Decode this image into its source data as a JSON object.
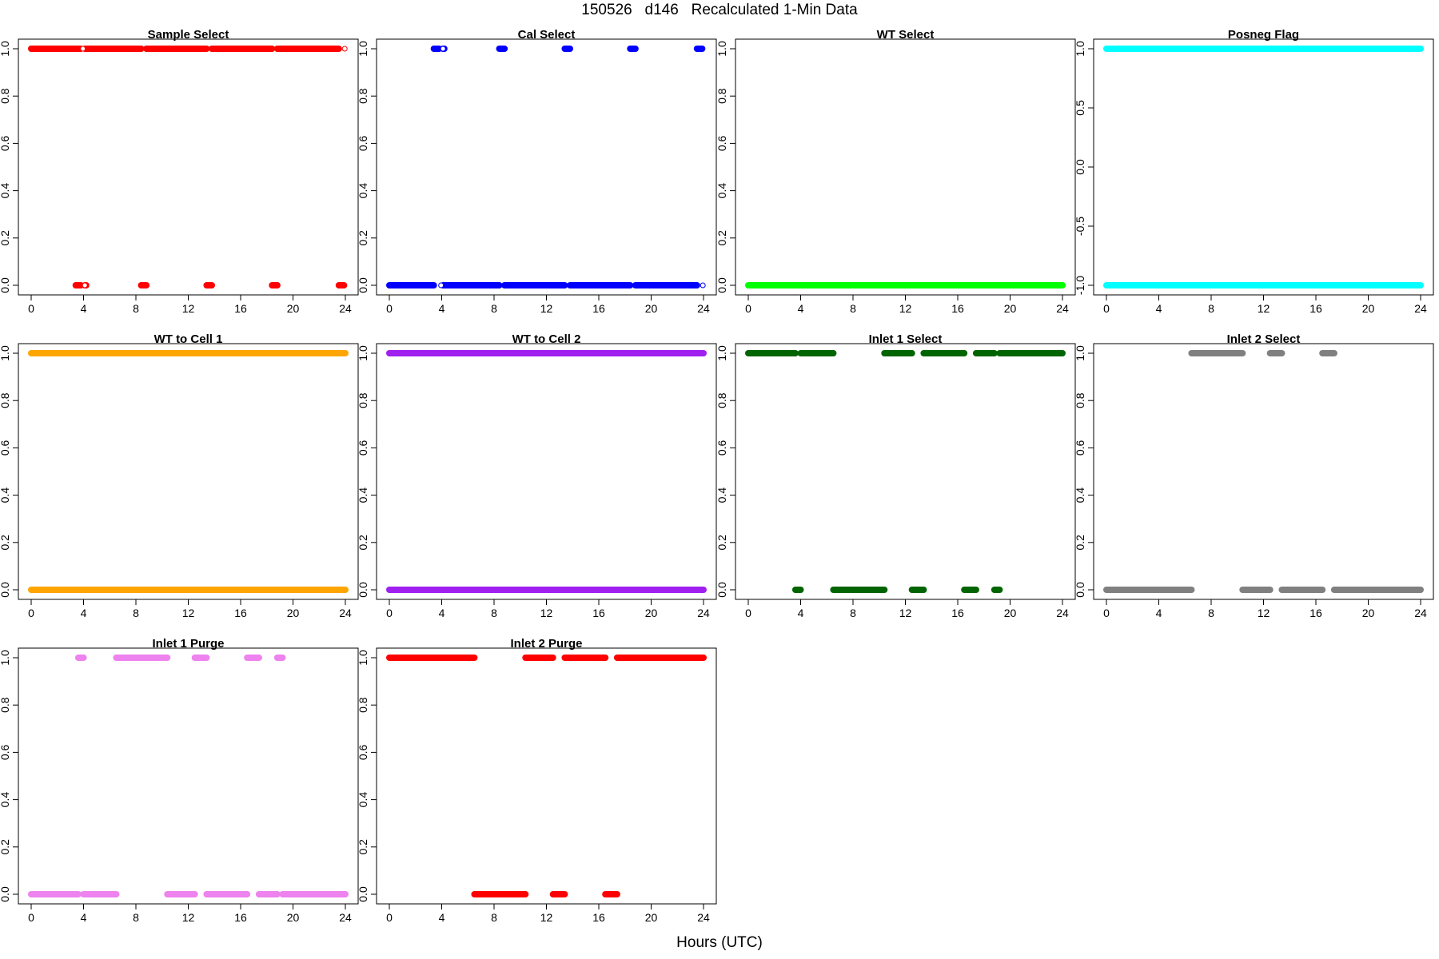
{
  "figure": {
    "title": "150526   d146   Recalculated 1-Min Data",
    "xlabel": "Hours (UTC)"
  },
  "chart_data": [
    {
      "type": "scatter",
      "title": "Sample Select",
      "color": "#FF0000",
      "xlim": [
        0,
        24
      ],
      "ylim": [
        0,
        1
      ],
      "x_ticks": [
        0,
        4,
        8,
        12,
        16,
        20,
        24
      ],
      "y_ticks": [
        0.0,
        0.2,
        0.4,
        0.6,
        0.8,
        1.0
      ],
      "segments": [
        {
          "y": 1,
          "from": 0,
          "to": 3.8
        },
        {
          "y": 1,
          "from": 4.1,
          "to": 8.4
        },
        {
          "y": 1,
          "from": 8.8,
          "to": 13.4
        },
        {
          "y": 1,
          "from": 13.8,
          "to": 18.4
        },
        {
          "y": 1,
          "from": 18.8,
          "to": 23.5
        },
        {
          "y": 0,
          "from": 3.4,
          "to": 3.8
        },
        {
          "y": 0,
          "from": 4.1,
          "to": 4.2
        },
        {
          "y": 0,
          "from": 8.4,
          "to": 8.8
        },
        {
          "y": 0,
          "from": 13.4,
          "to": 13.8
        },
        {
          "y": 0,
          "from": 18.4,
          "to": 18.8
        },
        {
          "y": 0,
          "from": 23.5,
          "to": 23.9
        }
      ],
      "open_points": [
        {
          "x": 3.95,
          "y": 1
        },
        {
          "x": 4.1,
          "y": 0
        },
        {
          "x": 23.95,
          "y": 1
        }
      ]
    },
    {
      "type": "scatter",
      "title": "Cal Select",
      "color": "#0000FF",
      "xlim": [
        0,
        24
      ],
      "ylim": [
        0,
        1
      ],
      "x_ticks": [
        0,
        4,
        8,
        12,
        16,
        20,
        24
      ],
      "y_ticks": [
        0.0,
        0.2,
        0.4,
        0.6,
        0.8,
        1.0
      ],
      "segments": [
        {
          "y": 0,
          "from": 0,
          "to": 3.4
        },
        {
          "y": 0,
          "from": 4.1,
          "to": 8.4
        },
        {
          "y": 0,
          "from": 8.8,
          "to": 13.4
        },
        {
          "y": 0,
          "from": 13.8,
          "to": 18.4
        },
        {
          "y": 0,
          "from": 18.8,
          "to": 23.5
        },
        {
          "y": 1,
          "from": 3.4,
          "to": 3.8
        },
        {
          "y": 1,
          "from": 4.1,
          "to": 4.2
        },
        {
          "y": 1,
          "from": 8.4,
          "to": 8.8
        },
        {
          "y": 1,
          "from": 13.4,
          "to": 13.8
        },
        {
          "y": 1,
          "from": 18.4,
          "to": 18.8
        },
        {
          "y": 1,
          "from": 23.5,
          "to": 23.9
        }
      ],
      "open_points": [
        {
          "x": 3.95,
          "y": 0
        },
        {
          "x": 4.1,
          "y": 1
        },
        {
          "x": 23.95,
          "y": 0
        }
      ]
    },
    {
      "type": "scatter",
      "title": "WT Select",
      "color": "#00FF00",
      "xlim": [
        0,
        24
      ],
      "ylim": [
        0,
        1
      ],
      "x_ticks": [
        0,
        4,
        8,
        12,
        16,
        20,
        24
      ],
      "y_ticks": [
        0.0,
        0.2,
        0.4,
        0.6,
        0.8,
        1.0
      ],
      "segments": [
        {
          "y": 0,
          "from": 0,
          "to": 24
        }
      ],
      "open_points": []
    },
    {
      "type": "scatter",
      "title": "Posneg Flag",
      "color": "#00FFFF",
      "xlim": [
        0,
        24
      ],
      "ylim": [
        -1,
        1
      ],
      "x_ticks": [
        0,
        4,
        8,
        12,
        16,
        20,
        24
      ],
      "y_ticks": [
        -1.0,
        -0.5,
        0.0,
        0.5,
        1.0
      ],
      "segments": [
        {
          "y": 1,
          "from": 0,
          "to": 24
        },
        {
          "y": -1,
          "from": 0,
          "to": 24
        }
      ],
      "open_points": []
    },
    {
      "type": "scatter",
      "title": "WT to Cell 1",
      "color": "#FFA500",
      "xlim": [
        0,
        24
      ],
      "ylim": [
        0,
        1
      ],
      "x_ticks": [
        0,
        4,
        8,
        12,
        16,
        20,
        24
      ],
      "y_ticks": [
        0.0,
        0.2,
        0.4,
        0.6,
        0.8,
        1.0
      ],
      "segments": [
        {
          "y": 1,
          "from": 0,
          "to": 24
        },
        {
          "y": 0,
          "from": 0,
          "to": 24
        }
      ],
      "open_points": []
    },
    {
      "type": "scatter",
      "title": "WT to Cell 2",
      "color": "#A020F0",
      "xlim": [
        0,
        24
      ],
      "ylim": [
        0,
        1
      ],
      "x_ticks": [
        0,
        4,
        8,
        12,
        16,
        20,
        24
      ],
      "y_ticks": [
        0.0,
        0.2,
        0.4,
        0.6,
        0.8,
        1.0
      ],
      "segments": [
        {
          "y": 1,
          "from": 0,
          "to": 24
        },
        {
          "y": 0,
          "from": 0,
          "to": 24
        }
      ],
      "open_points": []
    },
    {
      "type": "scatter",
      "title": "Inlet 1 Select",
      "color": "#006400",
      "xlim": [
        0,
        24
      ],
      "ylim": [
        0,
        1
      ],
      "x_ticks": [
        0,
        4,
        8,
        12,
        16,
        20,
        24
      ],
      "y_ticks": [
        0.0,
        0.2,
        0.4,
        0.6,
        0.8,
        1.0
      ],
      "segments": [
        {
          "y": 1,
          "from": 0,
          "to": 3.6
        },
        {
          "y": 1,
          "from": 4.0,
          "to": 6.5
        },
        {
          "y": 1,
          "from": 10.4,
          "to": 12.5
        },
        {
          "y": 1,
          "from": 13.4,
          "to": 16.5
        },
        {
          "y": 1,
          "from": 17.4,
          "to": 18.8
        },
        {
          "y": 1,
          "from": 19.2,
          "to": 24
        },
        {
          "y": 0,
          "from": 3.6,
          "to": 4.0
        },
        {
          "y": 0,
          "from": 6.5,
          "to": 10.4
        },
        {
          "y": 0,
          "from": 12.5,
          "to": 13.4
        },
        {
          "y": 0,
          "from": 16.5,
          "to": 17.4
        },
        {
          "y": 0,
          "from": 18.8,
          "to": 19.2
        }
      ],
      "open_points": []
    },
    {
      "type": "scatter",
      "title": "Inlet 2 Select",
      "color": "#808080",
      "xlim": [
        0,
        24
      ],
      "ylim": [
        0,
        1
      ],
      "x_ticks": [
        0,
        4,
        8,
        12,
        16,
        20,
        24
      ],
      "y_ticks": [
        0.0,
        0.2,
        0.4,
        0.6,
        0.8,
        1.0
      ],
      "segments": [
        {
          "y": 0,
          "from": 0,
          "to": 6.5
        },
        {
          "y": 0,
          "from": 10.4,
          "to": 12.5
        },
        {
          "y": 0,
          "from": 13.4,
          "to": 16.5
        },
        {
          "y": 0,
          "from": 17.4,
          "to": 24
        },
        {
          "y": 1,
          "from": 6.5,
          "to": 10.4
        },
        {
          "y": 1,
          "from": 12.5,
          "to": 13.4
        },
        {
          "y": 1,
          "from": 16.5,
          "to": 17.4
        }
      ],
      "open_points": []
    },
    {
      "type": "scatter",
      "title": "Inlet 1 Purge",
      "color": "#EE82EE",
      "xlim": [
        0,
        24
      ],
      "ylim": [
        0,
        1
      ],
      "x_ticks": [
        0,
        4,
        8,
        12,
        16,
        20,
        24
      ],
      "y_ticks": [
        0.0,
        0.2,
        0.4,
        0.6,
        0.8,
        1.0
      ],
      "segments": [
        {
          "y": 1,
          "from": 3.6,
          "to": 4.0
        },
        {
          "y": 1,
          "from": 6.5,
          "to": 10.4
        },
        {
          "y": 1,
          "from": 12.5,
          "to": 13.4
        },
        {
          "y": 1,
          "from": 16.5,
          "to": 17.4
        },
        {
          "y": 1,
          "from": 18.8,
          "to": 19.2
        },
        {
          "y": 0,
          "from": 0,
          "to": 3.6
        },
        {
          "y": 0,
          "from": 4.0,
          "to": 6.5
        },
        {
          "y": 0,
          "from": 10.4,
          "to": 12.5
        },
        {
          "y": 0,
          "from": 13.4,
          "to": 16.5
        },
        {
          "y": 0,
          "from": 17.4,
          "to": 18.8
        },
        {
          "y": 0,
          "from": 19.2,
          "to": 24
        }
      ],
      "open_points": []
    },
    {
      "type": "scatter",
      "title": "Inlet 2 Purge",
      "color": "#FF0000",
      "xlim": [
        0,
        24
      ],
      "ylim": [
        0,
        1
      ],
      "x_ticks": [
        0,
        4,
        8,
        12,
        16,
        20,
        24
      ],
      "y_ticks": [
        0.0,
        0.2,
        0.4,
        0.6,
        0.8,
        1.0
      ],
      "segments": [
        {
          "y": 1,
          "from": 0,
          "to": 6.5
        },
        {
          "y": 1,
          "from": 10.4,
          "to": 12.5
        },
        {
          "y": 1,
          "from": 13.4,
          "to": 16.5
        },
        {
          "y": 1,
          "from": 17.4,
          "to": 24
        },
        {
          "y": 0,
          "from": 6.5,
          "to": 10.4
        },
        {
          "y": 0,
          "from": 12.5,
          "to": 13.4
        },
        {
          "y": 0,
          "from": 16.5,
          "to": 17.4
        }
      ],
      "open_points": []
    }
  ]
}
